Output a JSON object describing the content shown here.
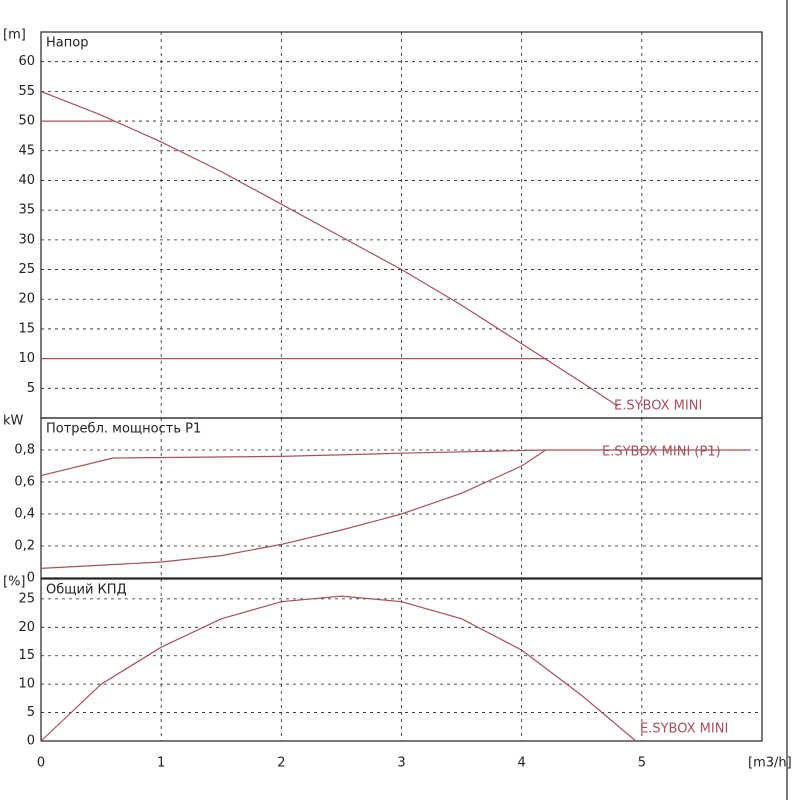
{
  "chart_data": [
    {
      "type": "line",
      "title": "Напор",
      "ylabel": "[m]",
      "annotation": "E.SYBOX MINI",
      "color": "#a8505e",
      "xlim": [
        0,
        6
      ],
      "xticks": [
        0,
        1,
        2,
        3,
        4,
        5
      ],
      "ylim": [
        0,
        65
      ],
      "yticks": [
        5,
        10,
        15,
        20,
        25,
        30,
        35,
        40,
        45,
        50,
        55,
        60
      ],
      "grid": true,
      "series": [
        {
          "x": [
            0,
            0.5,
            1,
            1.5,
            2,
            2.5,
            3,
            3.5,
            4,
            4.5,
            4.8
          ],
          "values": [
            55,
            51,
            46.5,
            41.5,
            36,
            30.5,
            25,
            19,
            12.5,
            6,
            2
          ]
        },
        {
          "x": [
            0,
            0.6
          ],
          "values": [
            50,
            50
          ]
        },
        {
          "x": [
            0,
            4.2
          ],
          "values": [
            10,
            10
          ]
        }
      ]
    },
    {
      "type": "line",
      "title": "Потребл. мощность P1",
      "ylabel": "kW",
      "annotation": "E.SYBOX MINI (P1)",
      "color": "#a8505e",
      "xlim": [
        0,
        6
      ],
      "xticks": [
        0,
        1,
        2,
        3,
        4,
        5
      ],
      "ylim": [
        0,
        1.0
      ],
      "yticks": [
        0,
        {
          "value": 0.2,
          "label": "0,2"
        },
        {
          "value": 0.4,
          "label": "0,4"
        },
        {
          "value": 0.6,
          "label": "0,6"
        },
        {
          "value": 0.8,
          "label": "0,8"
        }
      ],
      "grid": true,
      "series": [
        {
          "x": [
            0,
            0.6,
            2,
            3,
            4.2,
            5.9
          ],
          "values": [
            0.64,
            0.75,
            0.76,
            0.78,
            0.8,
            0.8
          ]
        },
        {
          "x": [
            0,
            1,
            1.5,
            2,
            2.5,
            3,
            3.5,
            4,
            4.2
          ],
          "values": [
            0.06,
            0.1,
            0.14,
            0.21,
            0.3,
            0.4,
            0.53,
            0.7,
            0.8
          ]
        }
      ]
    },
    {
      "type": "line",
      "title": "Общий КПД",
      "ylabel": "[%]",
      "xlabel": "[m3/h]",
      "annotation": "E.SYBOX MINI",
      "color": "#a8505e",
      "xlim": [
        0,
        6
      ],
      "xticks": [
        0,
        1,
        2,
        3,
        4,
        5
      ],
      "ylim": [
        0,
        28.5
      ],
      "yticks": [
        0,
        5,
        10,
        15,
        20,
        25
      ],
      "grid": true,
      "series": [
        {
          "x": [
            0,
            0.5,
            1,
            1.5,
            2,
            2.5,
            3,
            3.5,
            4,
            4.5,
            4.95
          ],
          "values": [
            0,
            10,
            16.5,
            21.5,
            24.5,
            25.5,
            24.5,
            21.5,
            16,
            8,
            0
          ]
        }
      ]
    }
  ]
}
